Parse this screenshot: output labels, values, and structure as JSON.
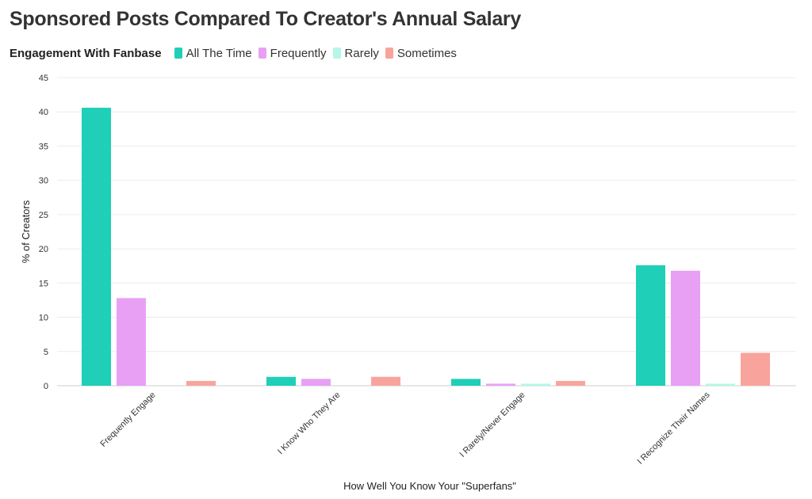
{
  "chart_data": {
    "type": "bar",
    "title": "Sponsored Posts Compared To Creator's Annual Salary",
    "legend_title": "Engagement With Fanbase",
    "xlabel": "How Well You Know Your \"Superfans\"",
    "ylabel": "% of Creators",
    "ylim": [
      0,
      45
    ],
    "yticks": [
      0,
      5,
      10,
      15,
      20,
      25,
      30,
      35,
      40,
      45
    ],
    "grid": true,
    "legend_position": "top-left",
    "categories": [
      "Frequently Engage",
      "I Know Who They Are",
      "I Rarely/Never Engage",
      "I Recognize Their Names"
    ],
    "series": [
      {
        "name": "All The Time",
        "color": "#20cfb7",
        "values": [
          40.6,
          1.3,
          1.0,
          17.6
        ]
      },
      {
        "name": "Frequently",
        "color": "#e8a0f5",
        "values": [
          12.8,
          1.0,
          0.3,
          16.8
        ]
      },
      {
        "name": "Rarely",
        "color": "#b5f7e8",
        "values": [
          0,
          0,
          0.3,
          0.3
        ]
      },
      {
        "name": "Sometimes",
        "color": "#f8a49c",
        "values": [
          0.7,
          1.3,
          0.7,
          4.8
        ]
      }
    ]
  }
}
